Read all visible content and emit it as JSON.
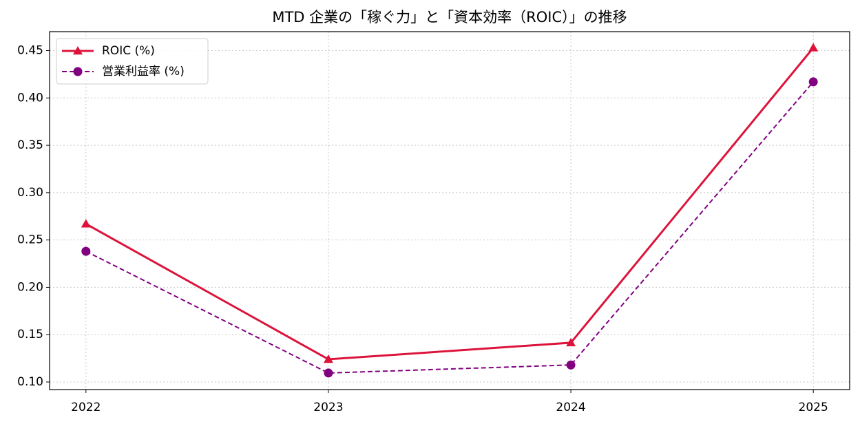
{
  "chart_data": {
    "type": "line",
    "title": "MTD 企業の「稼ぐ力」と「資本効率（ROIC）」の推移",
    "x": [
      2022,
      2023,
      2024,
      2025
    ],
    "xlim": [
      2021.85,
      2025.15
    ],
    "xticks": [
      2022,
      2023,
      2024,
      2025
    ],
    "ylim": [
      0.092,
      0.47
    ],
    "yticks": [
      {
        "value": 0.1,
        "label": "0.10"
      },
      0.15,
      {
        "value": 0.2,
        "label": "0.20"
      },
      0.25,
      {
        "value": 0.3,
        "label": "0.30"
      },
      0.35,
      {
        "value": 0.4,
        "label": "0.40"
      },
      0.45
    ],
    "grid": true,
    "legend": "upper left",
    "series": [
      {
        "name": "ROIC (%)",
        "color": "#dc143c",
        "marker": "triangle",
        "linestyle": "solid",
        "values": [
          0.267,
          0.124,
          0.1415,
          0.453
        ]
      },
      {
        "name": "営業利益率 (%)",
        "color": "#800080",
        "marker": "circle",
        "linestyle": "dashed",
        "values": [
          0.238,
          0.1095,
          0.118,
          0.417
        ]
      }
    ]
  }
}
